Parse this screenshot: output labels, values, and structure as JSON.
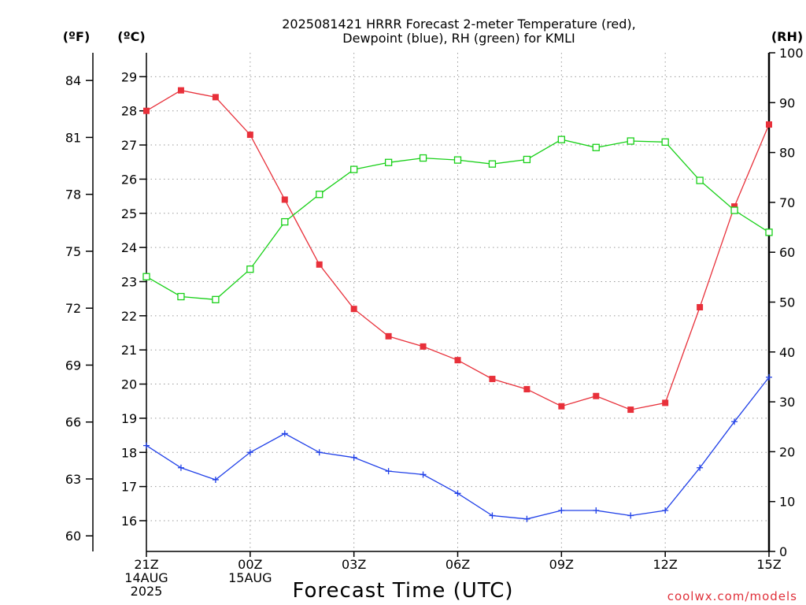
{
  "chart_data": {
    "type": "line",
    "title": [
      "2025081421 HRRR Forecast 2-meter Temperature (red),",
      "Dewpoint (blue), RH (green) for KMLI"
    ],
    "xlabel": "Forecast Time (UTC)",
    "credit": "coolwx.com/models",
    "units": {
      "fahrenheit": "(ºF)",
      "celsius": "(ºC)",
      "rh": "(RH)"
    },
    "x": [
      0,
      1,
      2,
      3,
      4,
      5,
      6,
      7,
      8,
      9,
      10,
      11,
      12,
      13,
      14,
      15,
      16,
      17,
      18
    ],
    "xlim": [
      0,
      18
    ],
    "x_ticks": [
      {
        "x": 0,
        "lines": [
          "21Z",
          "14AUG",
          "2025"
        ]
      },
      {
        "x": 3,
        "lines": [
          "00Z",
          "15AUG"
        ]
      },
      {
        "x": 6,
        "lines": [
          "03Z"
        ]
      },
      {
        "x": 9,
        "lines": [
          "06Z"
        ]
      },
      {
        "x": 12,
        "lines": [
          "09Z"
        ]
      },
      {
        "x": 15,
        "lines": [
          "12Z"
        ]
      },
      {
        "x": 18,
        "lines": [
          "15Z"
        ]
      }
    ],
    "y_celsius_lim": [
      15.1,
      29.7
    ],
    "y_celsius_ticks": [
      "16",
      "17",
      "18",
      "19",
      "20",
      "21",
      "22",
      "23",
      "24",
      "25",
      "26",
      "27",
      "28",
      "29"
    ],
    "y_fahrenheit_ticks": [
      "60",
      "63",
      "66",
      "69",
      "72",
      "75",
      "78",
      "81",
      "84"
    ],
    "y_rh_lim": [
      0,
      100
    ],
    "y_rh_ticks": [
      "0",
      "10",
      "20",
      "30",
      "40",
      "50",
      "60",
      "70",
      "80",
      "90",
      "100"
    ],
    "grid": true,
    "series": [
      {
        "name": "Temperature",
        "color": "#e8303a",
        "marker": "filled-square",
        "axis": "celsius",
        "values": [
          28.0,
          28.6,
          28.4,
          27.3,
          25.4,
          23.5,
          22.2,
          21.4,
          21.1,
          20.7,
          20.15,
          19.85,
          19.35,
          19.65,
          19.25,
          19.45,
          22.25,
          25.2,
          27.6
        ]
      },
      {
        "name": "Dewpoint",
        "color": "#2040e8",
        "marker": "plus",
        "axis": "celsius",
        "values": [
          18.2,
          17.55,
          17.2,
          18.0,
          18.55,
          18.0,
          17.85,
          17.45,
          17.35,
          16.8,
          16.15,
          16.05,
          16.3,
          16.3,
          16.15,
          16.3,
          17.55,
          18.9,
          20.2
        ]
      },
      {
        "name": "RH",
        "color": "#18d018",
        "marker": "open-square",
        "axis": "rh",
        "values": [
          55.1,
          51.1,
          50.5,
          56.6,
          66.1,
          71.6,
          76.6,
          78.0,
          78.9,
          78.5,
          77.7,
          78.6,
          82.6,
          81.0,
          82.3,
          82.1,
          74.4,
          68.4,
          64.0
        ]
      }
    ]
  }
}
